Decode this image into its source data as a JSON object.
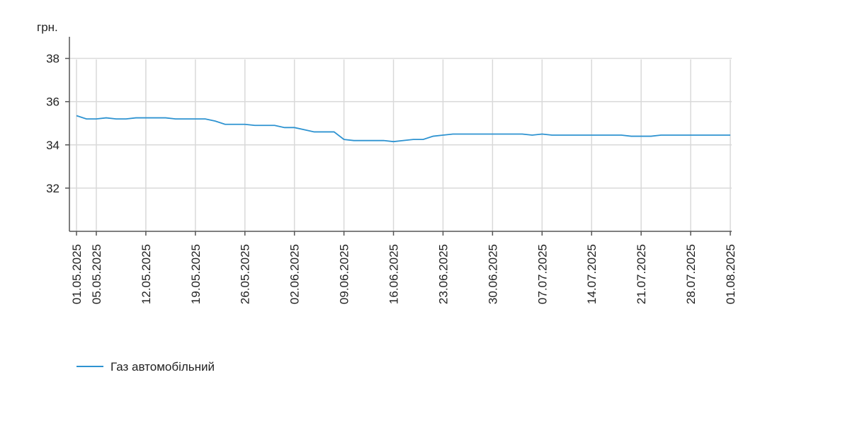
{
  "chart_data": {
    "type": "line",
    "y_unit": "грн.",
    "categories": [
      "01.05.2025",
      null,
      "05.05.2025",
      null,
      null,
      null,
      null,
      "12.05.2025",
      null,
      null,
      null,
      null,
      "19.05.2025",
      null,
      null,
      null,
      null,
      "26.05.2025",
      null,
      null,
      null,
      null,
      "02.06.2025",
      null,
      null,
      null,
      null,
      "09.06.2025",
      null,
      null,
      null,
      null,
      "16.06.2025",
      null,
      null,
      null,
      null,
      "23.06.2025",
      null,
      null,
      null,
      null,
      "30.06.2025",
      null,
      null,
      null,
      null,
      "07.07.2025",
      null,
      null,
      null,
      null,
      "14.07.2025",
      null,
      null,
      null,
      null,
      "21.07.2025",
      null,
      null,
      null,
      null,
      "28.07.2025",
      null,
      null,
      null,
      "01.08.2025"
    ],
    "series": [
      {
        "name": "Газ автомобільний",
        "color": "#2e93d1",
        "values": [
          35.35,
          35.2,
          35.2,
          35.25,
          35.2,
          35.2,
          35.25,
          35.25,
          35.25,
          35.25,
          35.2,
          35.2,
          35.2,
          35.2,
          35.1,
          34.95,
          34.95,
          34.95,
          34.9,
          34.9,
          34.9,
          34.8,
          34.8,
          34.7,
          34.6,
          34.6,
          34.6,
          34.25,
          34.2,
          34.2,
          34.2,
          34.2,
          34.15,
          34.2,
          34.25,
          34.25,
          34.4,
          34.45,
          34.5,
          34.5,
          34.5,
          34.5,
          34.5,
          34.5,
          34.5,
          34.5,
          34.45,
          34.5,
          34.45,
          34.45,
          34.45,
          34.45,
          34.45,
          34.45,
          34.45,
          34.45,
          34.4,
          34.4,
          34.4,
          34.45,
          34.45,
          34.45,
          34.45,
          34.45,
          34.45,
          34.45,
          34.45
        ]
      }
    ],
    "ylim": [
      30,
      39
    ],
    "yticks": [
      32,
      34,
      36,
      38
    ],
    "grid": true
  }
}
